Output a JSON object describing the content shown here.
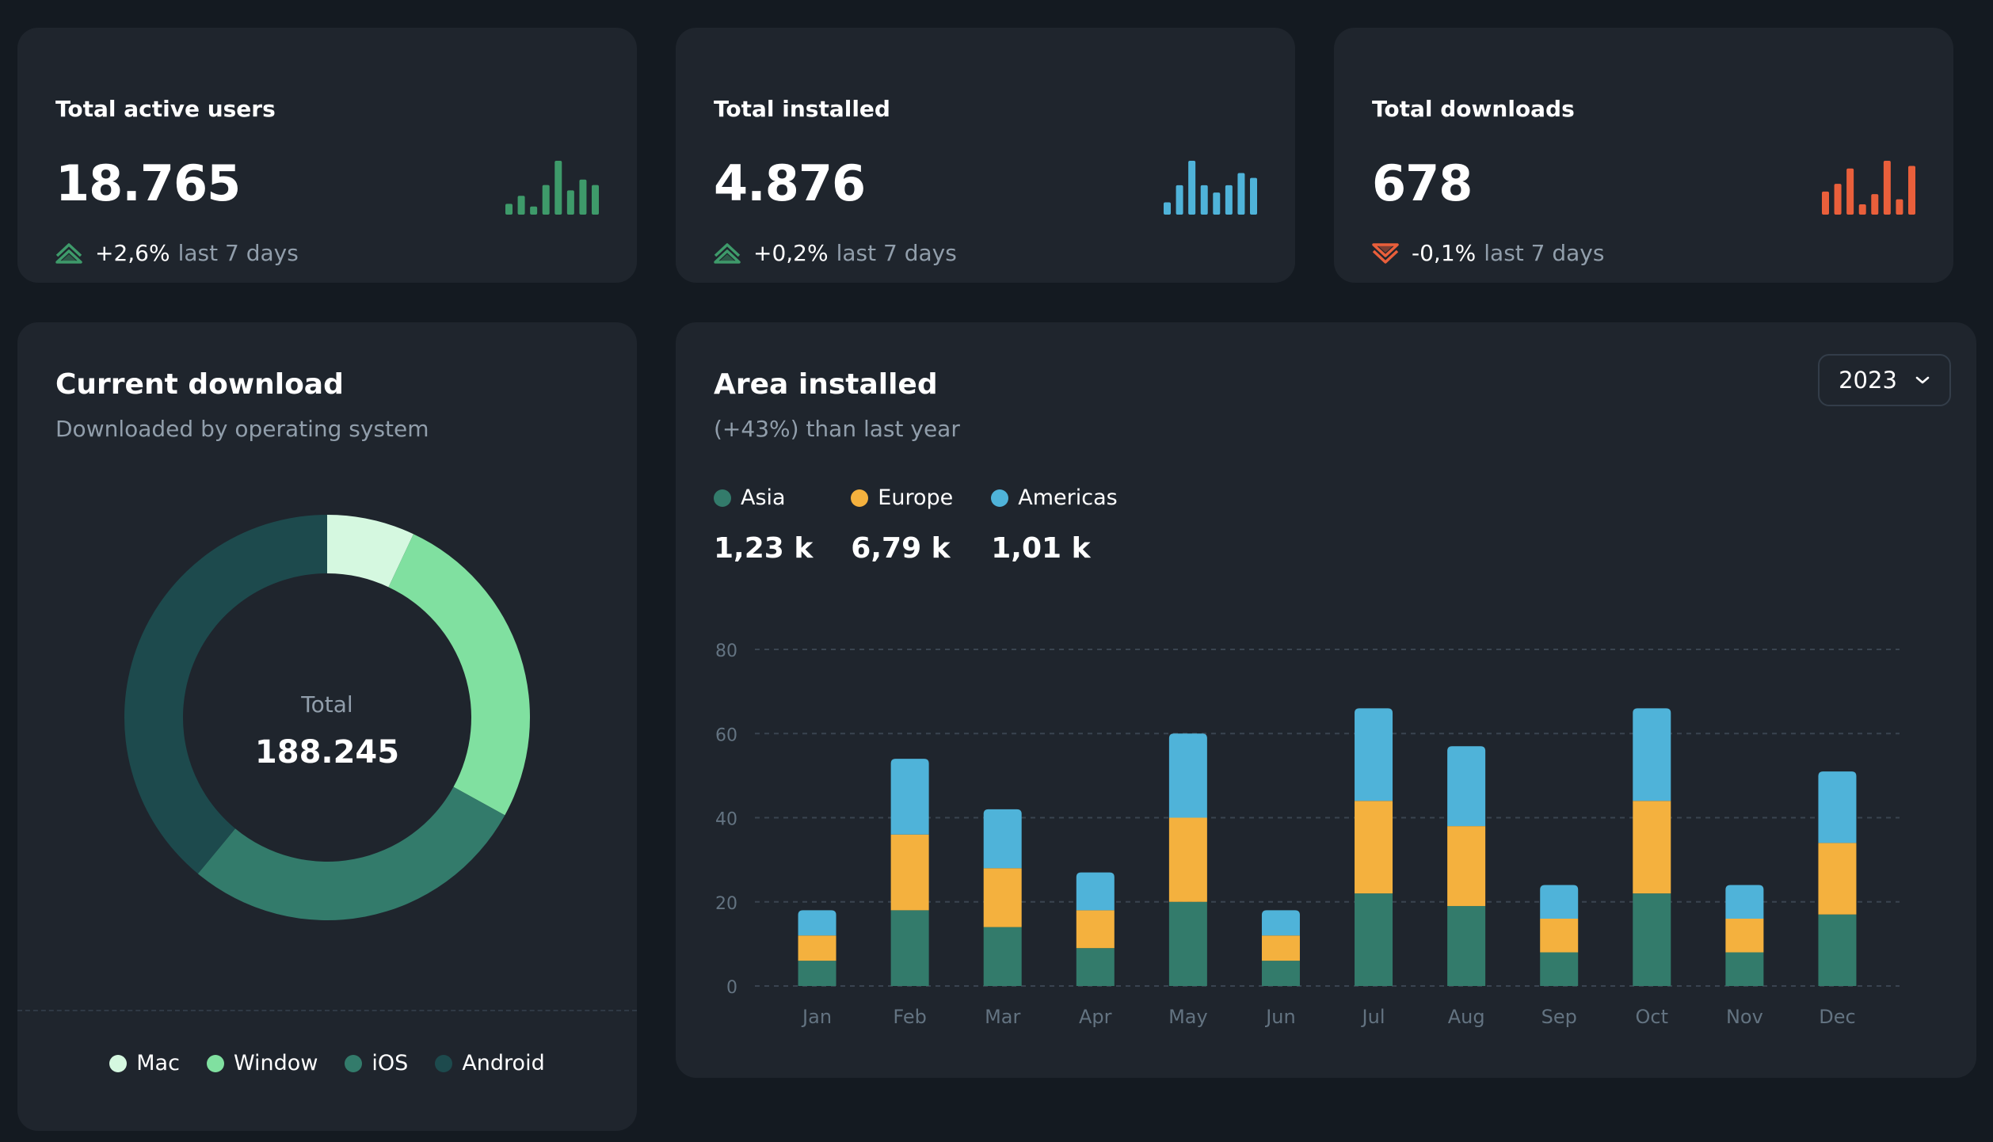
{
  "stats": [
    {
      "title": "Total active users",
      "value": "18.765",
      "trend": "+2,6%",
      "period": "last 7 days",
      "direction": "up",
      "color": "#3e9a6a",
      "spark": [
        4,
        7,
        3,
        11,
        20,
        9,
        13,
        11
      ]
    },
    {
      "title": "Total installed",
      "value": "4.876",
      "trend": "+0,2%",
      "period": "last 7 days",
      "direction": "up",
      "color": "#4fb3d9",
      "spark": [
        5,
        12,
        22,
        12,
        9,
        12,
        17,
        15
      ]
    },
    {
      "title": "Total downloads",
      "value": "678",
      "trend": "-0,1%",
      "period": "last 7 days",
      "direction": "down",
      "color": "#e95f3b",
      "spark": [
        9,
        12,
        18,
        4,
        8,
        21,
        6,
        19
      ]
    }
  ],
  "current_download": {
    "title": "Current download",
    "subtitle": "Downloaded by operating system",
    "total_label": "Total",
    "total_value": "188.245",
    "legend": [
      {
        "label": "Mac",
        "color": "#d5f8e0"
      },
      {
        "label": "Window",
        "color": "#80e0a0"
      },
      {
        "label": "iOS",
        "color": "#337b6b"
      },
      {
        "label": "Android",
        "color": "#1d4a4d"
      }
    ]
  },
  "area_installed": {
    "title": "Area installed",
    "subtitle": "(+43%) than last year",
    "year": "2023",
    "regions": [
      {
        "label": "Asia",
        "value": "1,23 k",
        "color": "#337b6b"
      },
      {
        "label": "Europe",
        "value": "6,79 k",
        "color": "#f4b13e"
      },
      {
        "label": "Americas",
        "value": "1,01 k",
        "color": "#4fb3d9"
      }
    ]
  },
  "chart_data": [
    {
      "type": "pie",
      "title": "Current download",
      "categories": [
        "Mac",
        "Window",
        "iOS",
        "Android"
      ],
      "values": [
        7,
        26,
        28,
        39
      ],
      "legend_position": "bottom"
    },
    {
      "type": "bar",
      "stacked": true,
      "title": "Area installed",
      "categories": [
        "Jan",
        "Feb",
        "Mar",
        "Apr",
        "May",
        "Jun",
        "Jul",
        "Aug",
        "Sep",
        "Oct",
        "Nov",
        "Dec"
      ],
      "series": [
        {
          "name": "Asia",
          "values": [
            6,
            18,
            14,
            9,
            20,
            6,
            22,
            19,
            8,
            22,
            8,
            17
          ]
        },
        {
          "name": "Europe",
          "values": [
            6,
            18,
            14,
            9,
            20,
            6,
            22,
            19,
            8,
            22,
            8,
            17
          ]
        },
        {
          "name": "Americas",
          "values": [
            6,
            18,
            14,
            9,
            20,
            6,
            22,
            19,
            8,
            22,
            8,
            17
          ]
        }
      ],
      "ylim": [
        0,
        80
      ],
      "yticks": [
        0,
        20,
        40,
        60,
        80
      ],
      "grid": true
    }
  ]
}
